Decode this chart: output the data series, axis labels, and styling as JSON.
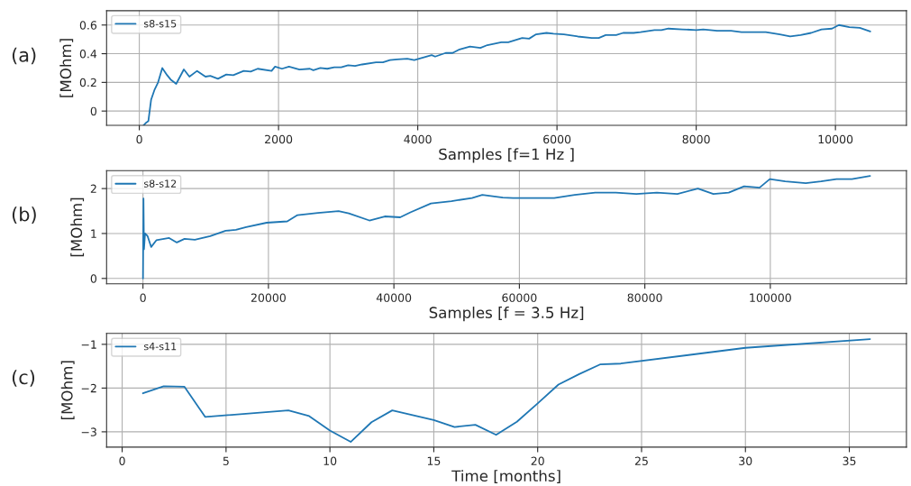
{
  "chart_data": [
    {
      "type": "line",
      "annotations": [
        "(a)"
      ],
      "xlabel": "Samples [f=1 Hz ]",
      "ylabel": "[MOhm]",
      "legend": "top left",
      "grid": true,
      "xlim": [
        -470,
        11020
      ],
      "ylim": [
        -0.1,
        0.7
      ],
      "xticks": [
        0,
        2000,
        4000,
        6000,
        8000,
        10000
      ],
      "yticks": [
        0,
        0.2,
        0.4,
        0.6
      ],
      "series": [
        {
          "name": "s8-s15",
          "color": "#1f77b4",
          "x": [
            60,
            100,
            130,
            170,
            220,
            270,
            330,
            400,
            450,
            530,
            640,
            720,
            830,
            950,
            1020,
            1130,
            1250,
            1350,
            1500,
            1600,
            1700,
            1900,
            1950,
            2050,
            2150,
            2300,
            2450,
            2500,
            2600,
            2700,
            2800,
            2900,
            3000,
            3100,
            3200,
            3400,
            3500,
            3600,
            3700,
            3850,
            3950,
            4200,
            4250,
            4400,
            4500,
            4600,
            4750,
            4900,
            5000,
            5200,
            5300,
            5500,
            5600,
            5700,
            5850,
            5950,
            6100,
            6300,
            6500,
            6600,
            6700,
            6850,
            6950,
            7100,
            7200,
            7400,
            7500,
            7600,
            7800,
            8000,
            8100,
            8300,
            8500,
            8650,
            8800,
            9000,
            9200,
            9350,
            9500,
            9650,
            9800,
            9950,
            10050,
            10200,
            10350,
            10500
          ],
          "values": [
            -0.1,
            -0.08,
            -0.07,
            0.08,
            0.15,
            0.2,
            0.3,
            0.25,
            0.22,
            0.19,
            0.29,
            0.24,
            0.28,
            0.24,
            0.245,
            0.225,
            0.255,
            0.25,
            0.28,
            0.275,
            0.295,
            0.28,
            0.31,
            0.295,
            0.31,
            0.29,
            0.295,
            0.285,
            0.3,
            0.295,
            0.305,
            0.305,
            0.32,
            0.315,
            0.325,
            0.34,
            0.34,
            0.355,
            0.36,
            0.365,
            0.355,
            0.39,
            0.38,
            0.405,
            0.405,
            0.43,
            0.45,
            0.44,
            0.46,
            0.48,
            0.48,
            0.51,
            0.505,
            0.535,
            0.545,
            0.54,
            0.535,
            0.52,
            0.51,
            0.51,
            0.53,
            0.53,
            0.545,
            0.545,
            0.55,
            0.565,
            0.565,
            0.575,
            0.57,
            0.565,
            0.57,
            0.56,
            0.56,
            0.55,
            0.55,
            0.55,
            0.535,
            0.52,
            0.53,
            0.545,
            0.57,
            0.575,
            0.6,
            0.585,
            0.58,
            0.555
          ]
        }
      ]
    },
    {
      "type": "line",
      "annotations": [
        "(b)"
      ],
      "xlabel": "Samples [f = 3.5 Hz]",
      "ylabel": "[MOhm]",
      "legend": "top left",
      "grid": true,
      "xlim": [
        -5800,
        121700
      ],
      "ylim": [
        -0.12,
        2.4
      ],
      "xticks": [
        0,
        20000,
        40000,
        60000,
        80000,
        100000
      ],
      "yticks": [
        0,
        1,
        2
      ],
      "series": [
        {
          "name": "s8-s12",
          "color": "#1f77b4",
          "x": [
            0,
            80,
            160,
            330,
            740,
            1310,
            2130,
            3360,
            4170,
            5400,
            6630,
            8270,
            10720,
            13180,
            14810,
            16450,
            19720,
            23000,
            24630,
            27900,
            31180,
            32810,
            36090,
            38540,
            41000,
            42630,
            45910,
            49180,
            52450,
            54090,
            57360,
            59000,
            62270,
            65550,
            68820,
            72090,
            75370,
            78640,
            81910,
            85190,
            88460,
            90920,
            93370,
            95830,
            98280,
            99920,
            102370,
            105650,
            108100,
            110560,
            113010,
            115900
          ],
          "values": [
            0.0,
            1.78,
            0.65,
            1.0,
            0.94,
            0.7,
            0.85,
            0.88,
            0.9,
            0.8,
            0.88,
            0.86,
            0.94,
            1.06,
            1.08,
            1.14,
            1.24,
            1.27,
            1.41,
            1.46,
            1.5,
            1.45,
            1.29,
            1.38,
            1.36,
            1.47,
            1.67,
            1.72,
            1.79,
            1.86,
            1.8,
            1.79,
            1.79,
            1.79,
            1.86,
            1.91,
            1.91,
            1.88,
            1.91,
            1.88,
            2.0,
            1.88,
            1.91,
            2.05,
            2.02,
            2.21,
            2.16,
            2.12,
            2.16,
            2.21,
            2.21,
            2.28
          ]
        }
      ]
    },
    {
      "type": "line",
      "annotations": [
        "(c)"
      ],
      "xlabel": "Time [months]",
      "ylabel": "[MOhm]",
      "legend": "top left",
      "grid": true,
      "xlim": [
        -0.75,
        37.75
      ],
      "ylim": [
        -3.35,
        -0.75
      ],
      "xticks": [
        0,
        5,
        10,
        15,
        20,
        25,
        30,
        35
      ],
      "yticks": [
        {
          "value": -1,
          "label": "−1"
        },
        {
          "value": -2,
          "label": "−2"
        },
        {
          "value": -3,
          "label": "−3"
        }
      ],
      "series": [
        {
          "name": "s4-s11",
          "color": "#1f77b4",
          "x": [
            1,
            2,
            3,
            4,
            8,
            9,
            10,
            11,
            12,
            13,
            15,
            16,
            17,
            18,
            19,
            20,
            21,
            22,
            23,
            24,
            30,
            36
          ],
          "values": [
            -2.12,
            -1.96,
            -1.97,
            -2.66,
            -2.51,
            -2.64,
            -2.97,
            -3.23,
            -2.78,
            -2.51,
            -2.73,
            -2.89,
            -2.84,
            -3.07,
            -2.77,
            -2.35,
            -1.92,
            -1.68,
            -1.46,
            -1.44,
            -1.08,
            -0.88
          ]
        }
      ]
    }
  ]
}
